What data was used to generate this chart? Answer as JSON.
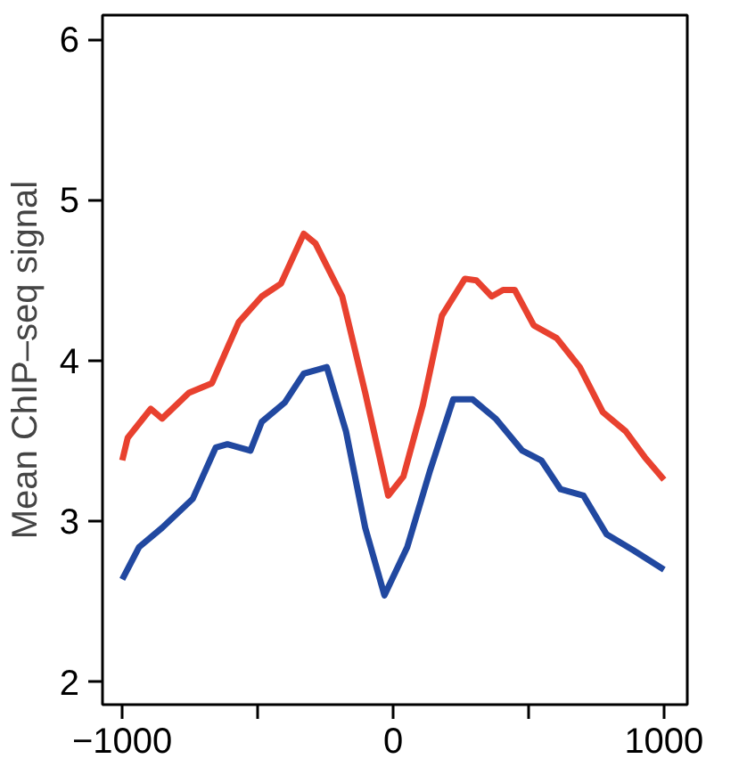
{
  "chart_data": {
    "type": "line",
    "ylabel": "Mean ChIP–seq signal",
    "xlim": [
      -1073,
      1086
    ],
    "ylim": [
      1.86,
      6.15
    ],
    "xticks": [
      {
        "value": -1000,
        "label": "−1000"
      },
      {
        "value": -500,
        "label": null
      },
      0,
      {
        "value": 500,
        "label": null
      },
      1000
    ],
    "yticks": [
      2,
      3,
      4,
      5,
      6
    ],
    "grid": false,
    "line_style": "solid",
    "marker": "none",
    "series": [
      {
        "color": "#e8412f",
        "x": [
          -1000,
          -980,
          -895,
          -853,
          -754,
          -669,
          -570,
          -485,
          -414,
          -330,
          -287,
          -188,
          -103,
          -18,
          38,
          109,
          180,
          265,
          307,
          364,
          406,
          449,
          519,
          604,
          689,
          774,
          859,
          929,
          1000
        ],
        "values": [
          3.38,
          3.52,
          3.7,
          3.64,
          3.8,
          3.86,
          4.24,
          4.4,
          4.48,
          4.79,
          4.73,
          4.4,
          3.8,
          3.16,
          3.28,
          3.72,
          4.28,
          4.51,
          4.5,
          4.4,
          4.44,
          4.44,
          4.22,
          4.14,
          3.96,
          3.68,
          3.56,
          3.4,
          3.26
        ]
      },
      {
        "color": "#2148a0",
        "x": [
          -1000,
          -938,
          -853,
          -740,
          -655,
          -612,
          -527,
          -485,
          -400,
          -330,
          -245,
          -174,
          -103,
          -32,
          52,
          137,
          222,
          293,
          378,
          477,
          547,
          618,
          703,
          788,
          887,
          1000
        ],
        "values": [
          2.64,
          2.84,
          2.96,
          3.14,
          3.46,
          3.48,
          3.44,
          3.62,
          3.74,
          3.92,
          3.96,
          3.56,
          2.96,
          2.54,
          2.84,
          3.32,
          3.76,
          3.76,
          3.64,
          3.44,
          3.38,
          3.2,
          3.16,
          2.92,
          2.82,
          2.7
        ]
      }
    ]
  }
}
